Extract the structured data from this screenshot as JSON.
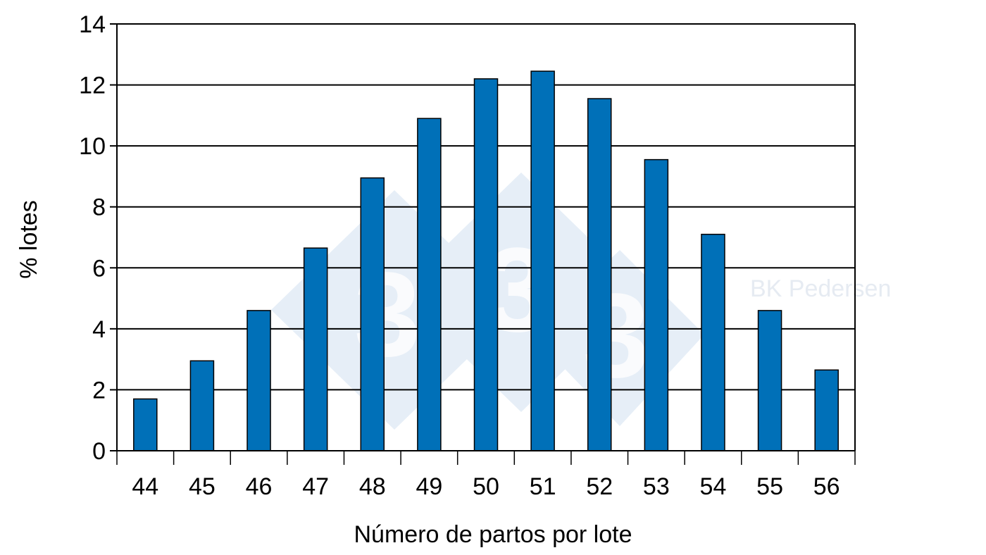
{
  "chart_data": {
    "type": "bar",
    "title": "",
    "xlabel": "Número de partos por lote",
    "ylabel": "% lotes",
    "categories": [
      "44",
      "45",
      "46",
      "47",
      "48",
      "49",
      "50",
      "51",
      "52",
      "53",
      "54",
      "55",
      "56"
    ],
    "values": [
      1.7,
      2.95,
      4.6,
      6.65,
      8.95,
      10.9,
      12.2,
      12.45,
      11.55,
      9.55,
      7.1,
      4.6,
      2.65
    ],
    "ylim": [
      0,
      14
    ],
    "yticks": [
      "0",
      "2",
      "4",
      "6",
      "8",
      "10",
      "12",
      "14"
    ],
    "grid": "horizontal",
    "legend": "none",
    "colors": {
      "bar_fill": "#0070b8",
      "bar_stroke": "#000000",
      "grid": "#000000",
      "watermark": "#e6eef7"
    }
  },
  "watermark": {
    "icon": "333-logo-icon",
    "text": "BK Pedersen"
  }
}
